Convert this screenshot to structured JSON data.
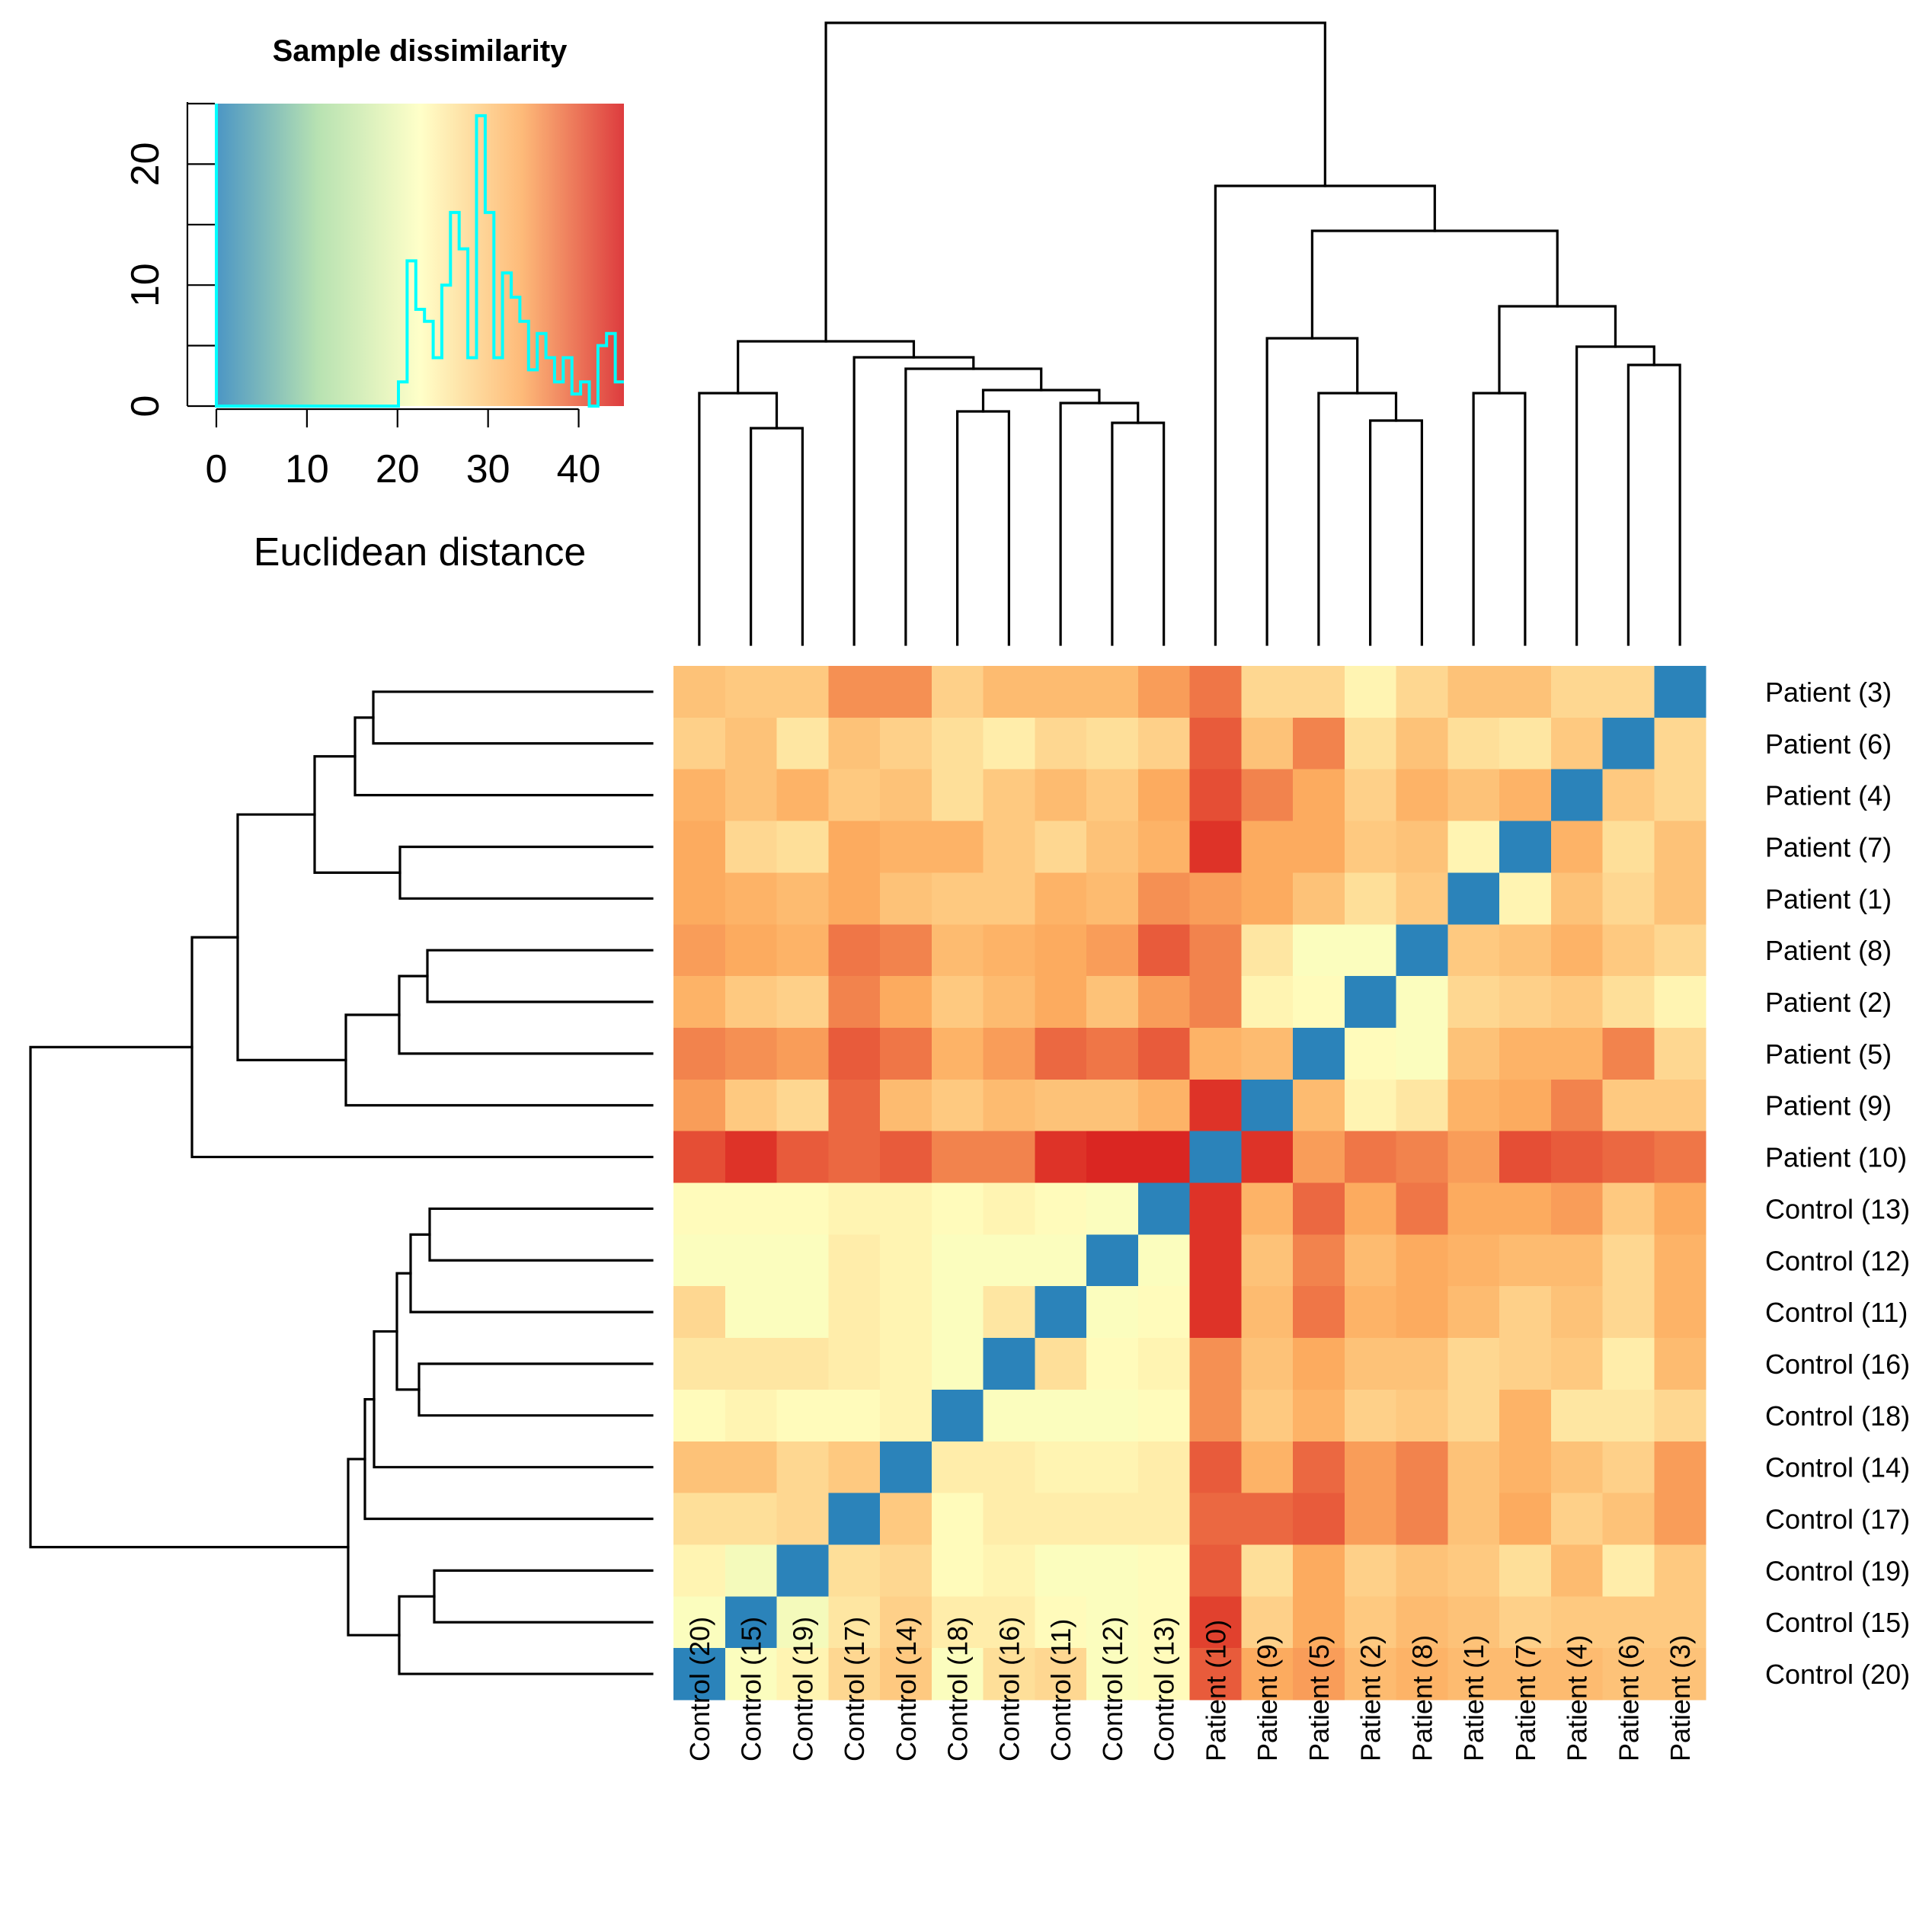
{
  "chart_data": {
    "type": "heatmap",
    "title": "Sample dissimilarity",
    "col_labels": [
      "Control (20)",
      "Control (15)",
      "Control (19)",
      "Control (17)",
      "Control (14)",
      "Control (18)",
      "Control (16)",
      "Control (11)",
      "Control (12)",
      "Control (13)",
      "Patient (10)",
      "Patient (9)",
      "Patient (5)",
      "Patient (2)",
      "Patient (8)",
      "Patient (1)",
      "Patient (7)",
      "Patient (4)",
      "Patient (6)",
      "Patient (3)"
    ],
    "row_labels": [
      "Patient (3)",
      "Patient (6)",
      "Patient (4)",
      "Patient (7)",
      "Patient (1)",
      "Patient (8)",
      "Patient (2)",
      "Patient (5)",
      "Patient (9)",
      "Patient (10)",
      "Control (13)",
      "Control (12)",
      "Control (11)",
      "Control (16)",
      "Control (18)",
      "Control (14)",
      "Control (17)",
      "Control (19)",
      "Control (15)",
      "Control (20)"
    ],
    "value_scale": {
      "min": 0,
      "max": 45,
      "palette": [
        "#2b83ba",
        "#abdda4",
        "#ffffbf",
        "#fdae61",
        "#d7191c"
      ]
    },
    "distances": [
      [
        31,
        30,
        30,
        36,
        36,
        29,
        32,
        32,
        32,
        35,
        38,
        28,
        28,
        24,
        28,
        31,
        31,
        28,
        28,
        0
      ],
      [
        29,
        31,
        26,
        31,
        29,
        27,
        25,
        28,
        27,
        29,
        40,
        31,
        37,
        27,
        31,
        27,
        26,
        30,
        0,
        28
      ],
      [
        33,
        31,
        33,
        30,
        31,
        27,
        30,
        32,
        30,
        34,
        41,
        37,
        34,
        29,
        33,
        31,
        33,
        0,
        30,
        28
      ],
      [
        34,
        28,
        27,
        34,
        33,
        33,
        30,
        28,
        31,
        33,
        43,
        34,
        34,
        30,
        31,
        24,
        0,
        33,
        27,
        31
      ],
      [
        34,
        33,
        32,
        34,
        31,
        30,
        30,
        33,
        32,
        36,
        35,
        34,
        31,
        27,
        30,
        0,
        24,
        31,
        28,
        31
      ],
      [
        35,
        34,
        33,
        38,
        37,
        32,
        33,
        34,
        35,
        40,
        37,
        26,
        22,
        22,
        0,
        30,
        31,
        33,
        30,
        28
      ],
      [
        33,
        30,
        29,
        37,
        34,
        30,
        32,
        34,
        31,
        35,
        37,
        24,
        23,
        0,
        22,
        28,
        29,
        30,
        27,
        24
      ],
      [
        37,
        36,
        35,
        40,
        38,
        33,
        35,
        39,
        38,
        40,
        33,
        32,
        0,
        23,
        22,
        31,
        33,
        33,
        37,
        28
      ],
      [
        35,
        30,
        28,
        39,
        32,
        30,
        32,
        31,
        31,
        33,
        43,
        0,
        32,
        24,
        26,
        33,
        34,
        37,
        30,
        30
      ],
      [
        41,
        43,
        40,
        39,
        40,
        37,
        37,
        43,
        44,
        44,
        0,
        43,
        35,
        38,
        37,
        35,
        41,
        40,
        39,
        38
      ],
      [
        23,
        23,
        23,
        24,
        24,
        23,
        24,
        23,
        22,
        0,
        43,
        33,
        39,
        34,
        38,
        34,
        34,
        35,
        30,
        34
      ],
      [
        22,
        22,
        22,
        25,
        24,
        22,
        22,
        22,
        0,
        22,
        43,
        31,
        37,
        32,
        34,
        33,
        32,
        32,
        28,
        33
      ],
      [
        28,
        22,
        22,
        25,
        24,
        22,
        26,
        0,
        22,
        23,
        43,
        32,
        38,
        33,
        34,
        32,
        29,
        31,
        28,
        33
      ],
      [
        26,
        26,
        26,
        25,
        24,
        22,
        0,
        27,
        23,
        24,
        36,
        31,
        34,
        31,
        31,
        28,
        29,
        30,
        25,
        32
      ],
      [
        23,
        24,
        23,
        23,
        24,
        0,
        22,
        22,
        22,
        23,
        36,
        30,
        33,
        29,
        30,
        28,
        33,
        26,
        26,
        28
      ],
      [
        31,
        31,
        28,
        30,
        0,
        25,
        25,
        24,
        24,
        25,
        40,
        33,
        39,
        35,
        37,
        31,
        33,
        31,
        29,
        35
      ],
      [
        27,
        27,
        28,
        0,
        30,
        23,
        25,
        25,
        25,
        25,
        39,
        39,
        40,
        35,
        37,
        31,
        34,
        29,
        31,
        35
      ],
      [
        24,
        21,
        0,
        27,
        28,
        23,
        24,
        22,
        22,
        23,
        40,
        27,
        34,
        29,
        31,
        30,
        27,
        32,
        25,
        30
      ],
      [
        22,
        0,
        21,
        26,
        29,
        25,
        25,
        23,
        22,
        23,
        42,
        29,
        34,
        30,
        32,
        31,
        29,
        30,
        30,
        30
      ],
      [
        0,
        22,
        24,
        28,
        30,
        22,
        27,
        28,
        22,
        23,
        40,
        34,
        35,
        32,
        33,
        32,
        32,
        32,
        31,
        31
      ]
    ],
    "key": {
      "xlabel": "Euclidean distance",
      "ylabel": "",
      "x_ticks": [
        0,
        10,
        20,
        30,
        40
      ],
      "y_ticks": [
        0,
        10,
        20
      ],
      "xlim": [
        0,
        45
      ],
      "ylim": [
        0,
        25
      ],
      "histogram_color": "#00ffff",
      "histogram_counts": [
        0,
        0,
        0,
        0,
        0,
        0,
        0,
        0,
        0,
        0,
        0,
        0,
        0,
        0,
        0,
        0,
        0,
        0,
        0,
        0,
        0,
        2,
        12,
        8,
        7,
        4,
        10,
        16,
        13,
        4,
        24,
        16,
        4,
        11,
        9,
        7,
        3,
        6,
        4,
        2,
        4,
        1,
        2,
        0,
        5,
        6,
        2
      ]
    }
  }
}
